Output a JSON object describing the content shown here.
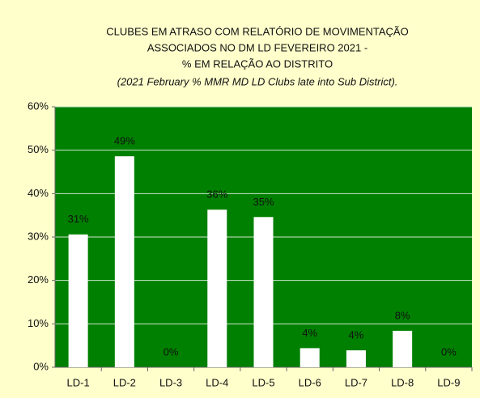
{
  "chart_data": {
    "type": "bar",
    "title": [
      "CLUBES EM ATRASO COM RELATÓRIO DE MOVIMENTAÇÃO",
      "ASSOCIADOS NO DM LD FEVEREIRO 2021 -",
      "%  EM RELAÇÃO  AO DISTRITO"
    ],
    "subtitle": "(2021 February % MMR MD LD Clubs late into Sub District).",
    "categories": [
      "LD-1",
      "LD-2",
      "LD-3",
      "LD-4",
      "LD-5",
      "LD-6",
      "LD-7",
      "LD-8",
      "LD-9"
    ],
    "values": [
      30.6,
      48.6,
      0,
      36.3,
      34.6,
      4.4,
      3.9,
      8.4,
      0
    ],
    "value_labels": [
      "31%",
      "49%",
      "0%",
      "36%",
      "35%",
      "4%",
      "4%",
      "8%",
      "0%"
    ],
    "color": "#ffffff",
    "plot_background": "#008000",
    "ylim": [
      0,
      60
    ],
    "yticks": [
      {
        "value": 0,
        "label": "0%"
      },
      {
        "value": 10,
        "label": "10%"
      },
      {
        "value": 20,
        "label": "20%"
      },
      {
        "value": 30,
        "label": "30%"
      },
      {
        "value": 40,
        "label": "40%"
      },
      {
        "value": 50,
        "label": "50%"
      },
      {
        "value": 60,
        "label": "60%"
      }
    ],
    "grid": true
  }
}
